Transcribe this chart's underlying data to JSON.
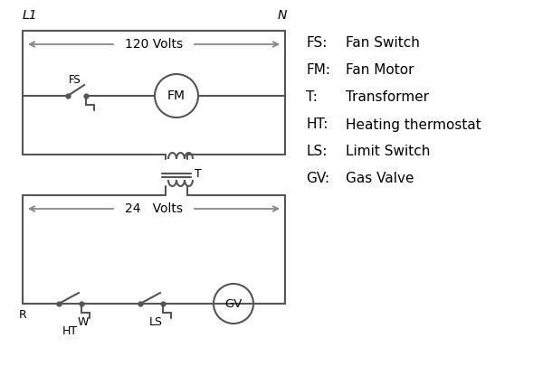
{
  "background_color": "#ffffff",
  "line_color": "#555555",
  "arrow_color": "#888888",
  "text_color": "#000000",
  "legend_items": [
    [
      "FS:    Fan Switch"
    ],
    [
      "FM:   Fan Motor"
    ],
    [
      "T:       Transformer"
    ],
    [
      "HT:    Heating thermostat"
    ],
    [
      "LS:    Limit Switch"
    ],
    [
      "GV:   Gas Valve"
    ]
  ],
  "legend_abbr": [
    "FS:",
    "FM:",
    "T:",
    "HT:",
    "LS:",
    "GV:"
  ],
  "legend_full": [
    "Fan Switch",
    "Fan Motor",
    "Transformer",
    "Heating thermostat",
    "Limit Switch",
    "Gas Valve"
  ],
  "L1_label": "L1",
  "N_label": "N",
  "volts120_label": "120 Volts",
  "volts24_label": "24   Volts",
  "T_label": "T",
  "R_label": "R",
  "W_label": "W",
  "HT_label": "HT",
  "LS_label": "LS",
  "FS_label": "FS",
  "FM_label": "FM",
  "GV_label": "GV"
}
